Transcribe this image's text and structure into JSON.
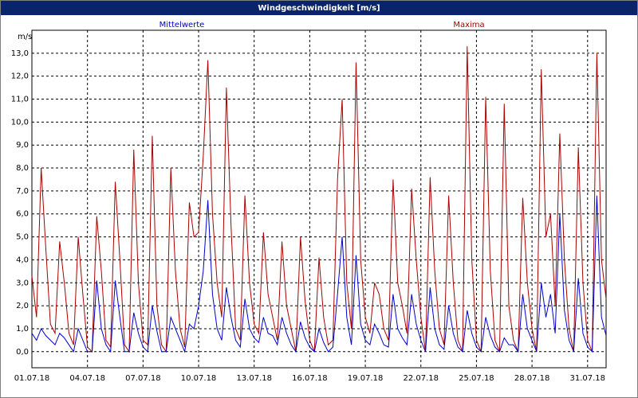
{
  "chart_data": {
    "type": "line",
    "title": "Windgeschwindigkeit [m/s]",
    "y_label": "m/s",
    "x": [
      0,
      0.25,
      0.5,
      0.75,
      1,
      1.25,
      1.5,
      1.75,
      2,
      2.25,
      2.5,
      2.75,
      3,
      3.25,
      3.5,
      3.75,
      4,
      4.25,
      4.5,
      4.75,
      5,
      5.25,
      5.5,
      5.75,
      6,
      6.25,
      6.5,
      6.75,
      7,
      7.25,
      7.5,
      7.75,
      8,
      8.25,
      8.5,
      8.75,
      9,
      9.25,
      9.5,
      9.75,
      10,
      10.25,
      10.5,
      10.75,
      11,
      11.25,
      11.5,
      11.75,
      12,
      12.25,
      12.5,
      12.75,
      13,
      13.25,
      13.5,
      13.75,
      14,
      14.25,
      14.5,
      14.75,
      15,
      15.25,
      15.5,
      15.75,
      16,
      16.25,
      16.5,
      16.75,
      17,
      17.25,
      17.5,
      17.75,
      18,
      18.25,
      18.5,
      18.75,
      19,
      19.25,
      19.5,
      19.75,
      20,
      20.25,
      20.5,
      20.75,
      21,
      21.25,
      21.5,
      21.75,
      22,
      22.25,
      22.5,
      22.75,
      23,
      23.25,
      23.5,
      23.75,
      24,
      24.25,
      24.5,
      24.75,
      25,
      25.25,
      25.5,
      25.75,
      26,
      26.25,
      26.5,
      26.75,
      27,
      27.25,
      27.5,
      27.75,
      28,
      28.25,
      28.5,
      28.75,
      29,
      29.25,
      29.5,
      29.75,
      30,
      30.25,
      30.5,
      30.75,
      31
    ],
    "series": [
      {
        "name": "Mittelwerte",
        "color": "#0000cc",
        "values": [
          0.8,
          0.5,
          1.0,
          0.7,
          0.5,
          0.3,
          0.8,
          0.6,
          0.3,
          0.0,
          1.0,
          0.5,
          0.0,
          0.0,
          3.1,
          1.0,
          0.3,
          0.0,
          3.1,
          1.5,
          0.0,
          0.0,
          1.7,
          0.8,
          0.2,
          0.0,
          2.0,
          0.9,
          0.0,
          0.0,
          1.5,
          1.0,
          0.5,
          0.0,
          1.2,
          1.0,
          2.0,
          3.5,
          6.6,
          2.5,
          1.0,
          0.5,
          2.8,
          1.5,
          0.5,
          0.2,
          2.3,
          1.0,
          0.6,
          0.4,
          1.5,
          0.8,
          0.7,
          0.3,
          1.5,
          0.8,
          0.3,
          0.0,
          1.3,
          0.6,
          0.2,
          0.0,
          1.0,
          0.4,
          0.0,
          0.2,
          2.5,
          5.0,
          1.5,
          0.3,
          4.2,
          1.2,
          0.5,
          0.3,
          1.2,
          0.8,
          0.3,
          0.2,
          2.5,
          1.0,
          0.6,
          0.3,
          2.5,
          1.2,
          0.5,
          0.0,
          2.8,
          1.0,
          0.3,
          0.1,
          2.0,
          0.8,
          0.2,
          0.0,
          1.8,
          0.8,
          0.2,
          0.0,
          1.5,
          0.7,
          0.2,
          0.0,
          0.6,
          0.3,
          0.3,
          0.0,
          2.5,
          1.0,
          0.5,
          0.0,
          3.0,
          1.5,
          2.5,
          0.8,
          6.0,
          1.8,
          0.5,
          0.0,
          3.2,
          0.8,
          0.2,
          0.0,
          6.8,
          1.5,
          0.7
        ]
      },
      {
        "name": "Maxima",
        "color": "#aa0000",
        "values": [
          3.3,
          1.5,
          8.0,
          4.5,
          1.2,
          0.8,
          4.8,
          3.0,
          0.8,
          0.3,
          5.0,
          2.5,
          0.2,
          0.0,
          5.9,
          3.5,
          0.5,
          0.2,
          7.4,
          4.0,
          0.3,
          0.0,
          8.8,
          3.0,
          0.5,
          0.3,
          9.4,
          2.0,
          0.3,
          0.0,
          8.0,
          3.5,
          1.0,
          0.2,
          6.5,
          5.0,
          5.2,
          8.5,
          12.7,
          6.0,
          3.0,
          1.5,
          11.5,
          5.5,
          1.0,
          0.5,
          6.8,
          3.0,
          1.2,
          0.8,
          5.2,
          2.5,
          1.5,
          0.5,
          4.8,
          2.0,
          1.0,
          0.0,
          5.0,
          2.2,
          0.5,
          0.0,
          4.1,
          1.5,
          0.3,
          0.5,
          7.5,
          11.0,
          3.0,
          1.0,
          12.6,
          4.0,
          1.5,
          0.8,
          3.0,
          2.5,
          1.0,
          0.5,
          7.5,
          3.0,
          2.0,
          0.8,
          7.1,
          4.0,
          1.5,
          0.0,
          7.6,
          3.5,
          1.0,
          0.3,
          6.8,
          3.0,
          0.5,
          0.0,
          13.3,
          4.0,
          0.5,
          0.0,
          11.1,
          3.5,
          0.5,
          0.0,
          10.8,
          2.0,
          0.5,
          0.0,
          6.7,
          3.0,
          1.0,
          0.0,
          12.3,
          5.0,
          6.0,
          2.0,
          9.5,
          4.0,
          1.0,
          0.0,
          8.9,
          3.0,
          0.5,
          0.0,
          13.0,
          4.0,
          2.3
        ]
      }
    ],
    "xlim": [
      0,
      31
    ],
    "xticks": [
      {
        "value": 0,
        "label": "01.07.18"
      },
      {
        "value": 3,
        "label": "04.07.18"
      },
      {
        "value": 6,
        "label": "07.07.18"
      },
      {
        "value": 9,
        "label": "10.07.18"
      },
      {
        "value": 12,
        "label": "13.07.18"
      },
      {
        "value": 15,
        "label": "16.07.18"
      },
      {
        "value": 18,
        "label": "19.07.18"
      },
      {
        "value": 21,
        "label": "22.07.18"
      },
      {
        "value": 24,
        "label": "25.07.18"
      },
      {
        "value": 27,
        "label": "28.07.18"
      },
      {
        "value": 30,
        "label": "31.07.18"
      }
    ],
    "ylim": [
      -0.7,
      14.0
    ],
    "yticks": [
      {
        "value": 0,
        "label": "0,0"
      },
      {
        "value": 1,
        "label": "1,0"
      },
      {
        "value": 2,
        "label": "2,0"
      },
      {
        "value": 3,
        "label": "3,0"
      },
      {
        "value": 4,
        "label": "4,0"
      },
      {
        "value": 5,
        "label": "5,0"
      },
      {
        "value": 6,
        "label": "6,0"
      },
      {
        "value": 7,
        "label": "7,0"
      },
      {
        "value": 8,
        "label": "8,0"
      },
      {
        "value": 9,
        "label": "9,0"
      },
      {
        "value": 10,
        "label": "10,0"
      },
      {
        "value": 11,
        "label": "11,0"
      },
      {
        "value": 12,
        "label": "12,0"
      },
      {
        "value": 13,
        "label": "13,0"
      }
    ],
    "grid": true
  }
}
